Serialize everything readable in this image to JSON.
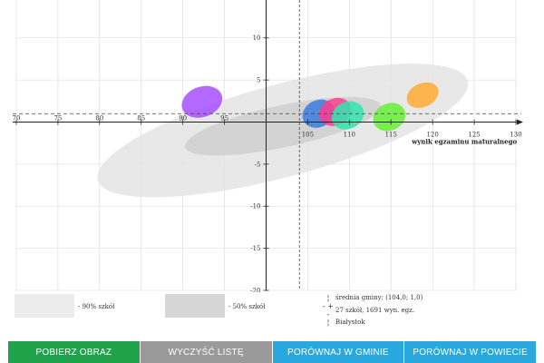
{
  "chart_data": {
    "type": "scatter",
    "xlabel": "wynik egzaminu maturalnego",
    "x_ticks": [
      "70",
      "75",
      "80",
      "85",
      "90",
      "95",
      "105",
      "110",
      "115",
      "120",
      "125",
      "130"
    ],
    "y_ticks": [
      "10",
      "5",
      "-5",
      "-10",
      "-15",
      "-20"
    ],
    "xlim": [
      70,
      131
    ],
    "ylim": [
      -20,
      14
    ],
    "grid": true,
    "mean": {
      "x": 104.0,
      "y": 1.0
    },
    "regions": [
      {
        "name": "90% szkół",
        "cx": 102,
        "cy": -1,
        "rx": 23,
        "ry": 5.5,
        "angle": -15,
        "color": "#e4e4e4"
      },
      {
        "name": "50% szkół",
        "cx": 102,
        "cy": -0.5,
        "rx": 12,
        "ry": 2.5,
        "angle": -12,
        "color": "#cfcfcf"
      }
    ],
    "schools": [
      {
        "cx": 92.3,
        "cy": 2.4,
        "rx": 2.5,
        "ry": 1.8,
        "angle": -20,
        "color": "#a64dff"
      },
      {
        "cx": 106.3,
        "cy": 1.0,
        "rx": 2.0,
        "ry": 1.6,
        "angle": -25,
        "color": "#3a7be0"
      },
      {
        "cx": 108.3,
        "cy": 1.2,
        "rx": 2.0,
        "ry": 1.6,
        "angle": -25,
        "color": "#ff3d8c"
      },
      {
        "cx": 109.8,
        "cy": 0.8,
        "rx": 2.0,
        "ry": 1.6,
        "angle": -25,
        "color": "#2fe6b0"
      },
      {
        "cx": 114.8,
        "cy": 0.6,
        "rx": 2.0,
        "ry": 1.6,
        "angle": -25,
        "color": "#66ee33"
      },
      {
        "cx": 118.8,
        "cy": 3.2,
        "rx": 2.0,
        "ry": 1.4,
        "angle": -25,
        "color": "#ffaa33"
      }
    ]
  },
  "legend": {
    "band90": "- 90% szkół",
    "band50": "- 50% szkół",
    "mean_label": "średnia gminy: (104,0; 1,0)",
    "count_label": "27 szkół, 1691 wyn. egz.",
    "place_label": "Białystok",
    "sym_mean": "¦",
    "sym_cross": "- + -",
    "sym_place": "¦"
  },
  "buttons": [
    {
      "label": "POBIERZ OBRAZ",
      "color": "#1fa34a"
    },
    {
      "label": "WYCZYŚĆ LISTĘ",
      "color": "#9a9a9a"
    },
    {
      "label": "PORÓWNAJ W GMINIE",
      "color": "#29a8e0"
    },
    {
      "label": "PORÓWNAJ W POWIECIE",
      "color": "#29a8e0"
    }
  ]
}
